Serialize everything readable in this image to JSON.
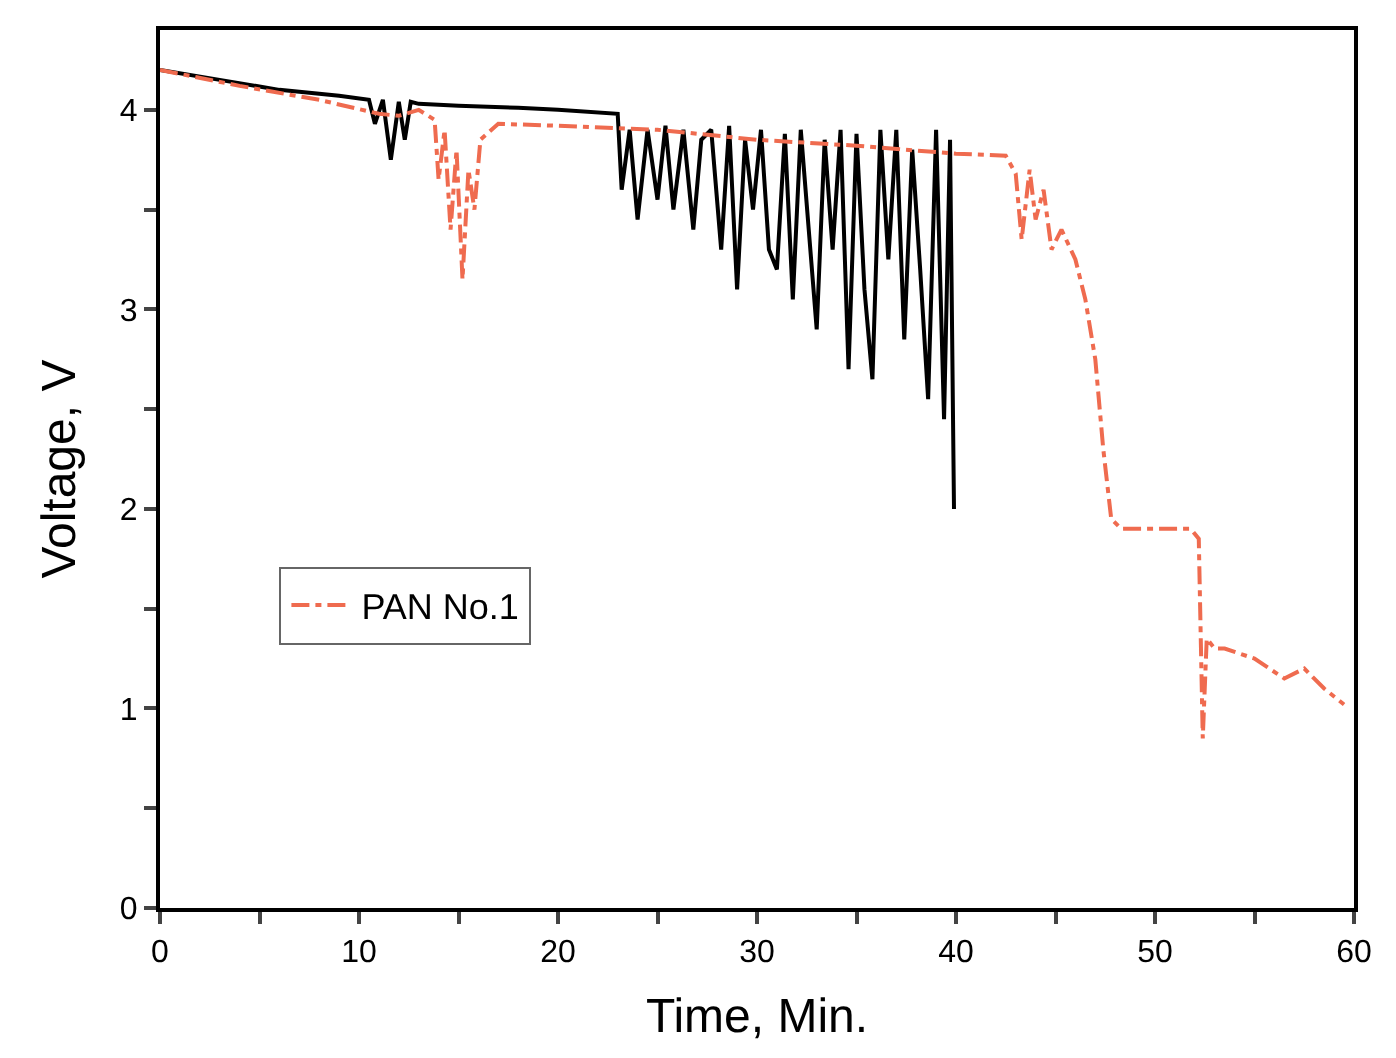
{
  "chart_data": {
    "type": "line",
    "xlabel": "Time, Min.",
    "ylabel": "Voltage, V",
    "xlim": [
      0,
      60
    ],
    "ylim": [
      0,
      4.4
    ],
    "xticks": [
      0,
      {
        "value": 5,
        "label": null
      },
      10,
      {
        "value": 15,
        "label": null
      },
      20,
      {
        "value": 25,
        "label": null
      },
      30,
      {
        "value": 35,
        "label": null
      },
      40,
      {
        "value": 45,
        "label": null
      },
      50,
      {
        "value": 55,
        "label": null
      },
      60
    ],
    "yticks": [
      0,
      {
        "value": 0.5,
        "label": null
      },
      1,
      {
        "value": 1.5,
        "label": null
      },
      2,
      {
        "value": 2.5,
        "label": null
      },
      3,
      {
        "value": 3.5,
        "label": null
      },
      4
    ],
    "legend": "bottom left",
    "series": [
      {
        "color": "#000000",
        "line_style": "solid",
        "x": [
          0,
          3,
          6,
          9,
          10.5,
          10.8,
          11.2,
          11.6,
          12,
          12.3,
          12.6,
          13,
          15,
          18,
          20,
          23,
          23.2,
          23.6,
          24,
          24.5,
          25,
          25.4,
          25.8,
          26.3,
          26.8,
          27.2,
          27.7,
          28.2,
          28.6,
          29,
          29.4,
          29.8,
          30.2,
          30.6,
          31,
          31.4,
          31.8,
          32.2,
          32.6,
          33,
          33.4,
          33.8,
          34.2,
          34.6,
          35,
          35.4,
          35.8,
          36.2,
          36.6,
          37,
          37.4,
          37.8,
          38.2,
          38.6,
          39,
          39.4,
          39.7,
          39.9
        ],
        "values": [
          4.2,
          4.15,
          4.1,
          4.07,
          4.05,
          3.93,
          4.05,
          3.75,
          4.04,
          3.85,
          4.04,
          4.03,
          4.02,
          4.01,
          4.0,
          3.98,
          3.6,
          3.9,
          3.45,
          3.9,
          3.55,
          3.92,
          3.5,
          3.9,
          3.4,
          3.85,
          3.9,
          3.3,
          3.92,
          3.1,
          3.85,
          3.5,
          3.9,
          3.3,
          3.2,
          3.88,
          3.05,
          3.9,
          3.4,
          2.9,
          3.85,
          3.3,
          3.9,
          2.7,
          3.88,
          3.1,
          2.65,
          3.9,
          3.25,
          3.9,
          2.85,
          3.8,
          3.2,
          2.55,
          3.9,
          2.45,
          3.85,
          2.0
        ]
      },
      {
        "name": "PAN No.1",
        "color": "#ef6b4f",
        "line_style": "dashdot",
        "x": [
          0,
          4,
          8,
          11,
          12,
          13,
          13.8,
          14,
          14.3,
          14.6,
          14.9,
          15.2,
          15.5,
          15.8,
          16.1,
          17,
          20,
          25,
          30,
          35,
          40,
          42.5,
          43,
          43.3,
          43.7,
          44,
          44.4,
          44.8,
          45.3,
          46,
          46.5,
          47,
          47.4,
          47.8,
          48.3,
          50,
          51.8,
          52.2,
          52.4,
          52.6,
          53,
          53.5,
          55,
          56.5,
          57.5,
          58.5,
          59.5
        ],
        "values": [
          4.2,
          4.12,
          4.05,
          3.98,
          3.97,
          4.0,
          3.95,
          3.65,
          3.9,
          3.4,
          3.8,
          3.15,
          3.7,
          3.5,
          3.85,
          3.93,
          3.92,
          3.9,
          3.85,
          3.82,
          3.78,
          3.77,
          3.68,
          3.35,
          3.7,
          3.45,
          3.6,
          3.3,
          3.4,
          3.25,
          3.05,
          2.75,
          2.3,
          1.95,
          1.9,
          1.9,
          1.9,
          1.85,
          0.85,
          1.35,
          1.3,
          1.3,
          1.25,
          1.15,
          1.2,
          1.1,
          1.02
        ]
      }
    ]
  }
}
